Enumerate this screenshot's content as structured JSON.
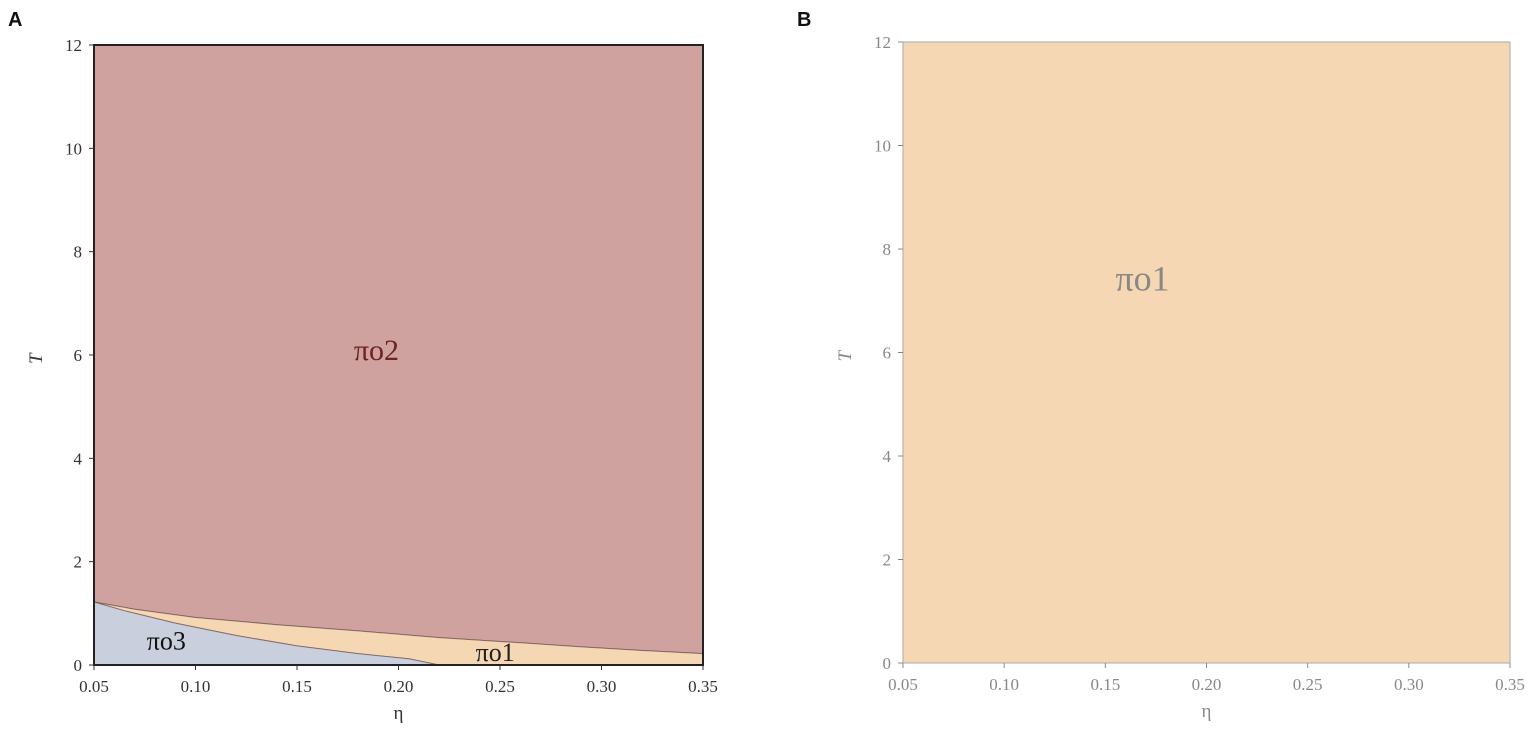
{
  "chart_data": [
    {
      "panel_label": "A",
      "type": "area",
      "xlabel": "η",
      "ylabel": "T",
      "xlim": [
        0.05,
        0.35
      ],
      "ylim": [
        0,
        12
      ],
      "xticks": [
        "0.05",
        "0.10",
        "0.15",
        "0.20",
        "0.25",
        "0.30",
        "0.35"
      ],
      "yticks": [
        "0",
        "2",
        "4",
        "6",
        "8",
        "10",
        "12"
      ],
      "grid": false,
      "regions": [
        {
          "name": "πo2",
          "color": "#cfa19f",
          "label_color": "#6e2323",
          "label_at": {
            "x": 0.178,
            "y": 5.9
          },
          "label_size": 30,
          "polygon": [
            [
              0.05,
              12
            ],
            [
              0.35,
              12
            ],
            [
              0.35,
              0.22
            ],
            [
              0.32,
              0.28
            ],
            [
              0.29,
              0.35
            ],
            [
              0.26,
              0.43
            ],
            [
              0.22,
              0.53
            ],
            [
              0.18,
              0.66
            ],
            [
              0.14,
              0.78
            ],
            [
              0.1,
              0.92
            ],
            [
              0.07,
              1.08
            ],
            [
              0.05,
              1.22
            ]
          ]
        },
        {
          "name": "πo1",
          "color": "#f6d7b3",
          "label_color": "#222222",
          "label_at": {
            "x": 0.238,
            "y": 0.08
          },
          "label_size": 26,
          "polygon": [
            [
              0.05,
              1.22
            ],
            [
              0.07,
              1.08
            ],
            [
              0.1,
              0.92
            ],
            [
              0.14,
              0.78
            ],
            [
              0.18,
              0.66
            ],
            [
              0.22,
              0.53
            ],
            [
              0.26,
              0.43
            ],
            [
              0.29,
              0.35
            ],
            [
              0.32,
              0.28
            ],
            [
              0.35,
              0.22
            ],
            [
              0.35,
              0
            ],
            [
              0.22,
              0
            ],
            [
              0.205,
              0.12
            ],
            [
              0.18,
              0.22
            ],
            [
              0.15,
              0.37
            ],
            [
              0.12,
              0.57
            ],
            [
              0.09,
              0.81
            ],
            [
              0.065,
              1.05
            ],
            [
              0.05,
              1.22
            ]
          ]
        },
        {
          "name": "πo3",
          "color": "#c9cfdc",
          "label_color": "#111111",
          "label_at": {
            "x": 0.076,
            "y": 0.3
          },
          "label_size": 26,
          "polygon": [
            [
              0.05,
              1.22
            ],
            [
              0.065,
              1.05
            ],
            [
              0.09,
              0.81
            ],
            [
              0.12,
              0.57
            ],
            [
              0.15,
              0.37
            ],
            [
              0.18,
              0.22
            ],
            [
              0.205,
              0.12
            ],
            [
              0.22,
              0
            ],
            [
              0.05,
              0
            ]
          ]
        }
      ],
      "tick_color": "#333333",
      "frame_color": "#222222"
    },
    {
      "panel_label": "B",
      "type": "area",
      "xlabel": "η",
      "ylabel": "T",
      "xlim": [
        0.05,
        0.35
      ],
      "ylim": [
        0,
        12
      ],
      "xticks": [
        "0.05",
        "0.10",
        "0.15",
        "0.20",
        "0.25",
        "0.30",
        "0.35"
      ],
      "yticks": [
        "0",
        "2",
        "4",
        "6",
        "8",
        "10",
        "12"
      ],
      "grid": false,
      "regions": [
        {
          "name": "πo1",
          "color": "#f6d7b3",
          "label_color": "#888888",
          "label_at": {
            "x": 0.155,
            "y": 7.2
          },
          "label_size": 36,
          "polygon": [
            [
              0.05,
              12
            ],
            [
              0.35,
              12
            ],
            [
              0.35,
              0
            ],
            [
              0.05,
              0
            ]
          ]
        }
      ],
      "tick_color": "#888888",
      "frame_color": "#aaaaaa"
    }
  ]
}
